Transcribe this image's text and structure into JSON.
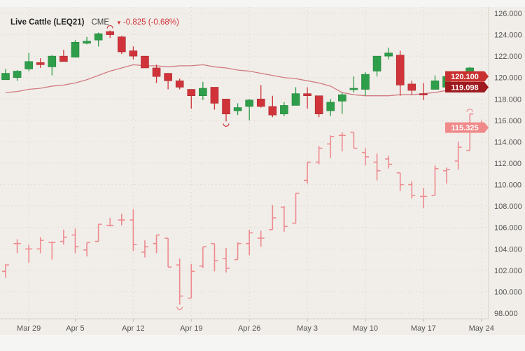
{
  "header": {
    "title": "Live Cattle (LEQ21)",
    "exchange": "CME",
    "change_icon": "triangle-down-icon",
    "change": "-0.825 (-0.68%)"
  },
  "colors": {
    "up": "#2e9e4a",
    "down": "#d0343a",
    "ohlc": "#ee8a8f",
    "ma": "#d07a80",
    "last_label": "#c8312f",
    "ma_label": "#9e1a1f",
    "ohlc_label": "#f08a8a",
    "background": "#f1eee9"
  },
  "chart_data": {
    "type": "candlestick",
    "title": "",
    "grid": true,
    "ylim": [
      98,
      126
    ],
    "y_ticks": [
      "126.000",
      "124.000",
      "122.000",
      "120.000",
      "118.000",
      "116.000",
      "114.000",
      "112.000",
      "110.000",
      "108.000",
      "106.000",
      "104.000",
      "102.000",
      "100.000",
      "98.000"
    ],
    "x_ticks": [
      {
        "label": "Mar 29",
        "index": 2
      },
      {
        "label": "Apr 5",
        "index": 6
      },
      {
        "label": "Apr 12",
        "index": 11
      },
      {
        "label": "Apr 19",
        "index": 16
      },
      {
        "label": "Apr 26",
        "index": 21
      },
      {
        "label": "May 3",
        "index": 26
      },
      {
        "label": "May 10",
        "index": 31
      },
      {
        "label": "May 17",
        "index": 36
      },
      {
        "label": "May 24",
        "index": 41
      }
    ],
    "candles": [
      [
        119.8,
        120.4,
        120.8,
        119.8
      ],
      [
        120.0,
        120.6,
        120.7,
        119.7
      ],
      [
        120.8,
        121.5,
        122.3,
        120.6
      ],
      [
        121.4,
        121.2,
        121.8,
        120.9
      ],
      [
        121.0,
        122.0,
        122.1,
        120.2
      ],
      [
        122.0,
        121.5,
        122.6,
        121.5
      ],
      [
        121.9,
        123.3,
        123.5,
        121.9
      ],
      [
        123.2,
        123.4,
        123.8,
        123.1
      ],
      [
        123.5,
        124.1,
        124.2,
        122.9
      ],
      [
        124.3,
        124.0,
        124.4,
        123.7
      ],
      [
        123.8,
        122.4,
        123.9,
        122.2
      ],
      [
        122.5,
        122.0,
        122.9,
        121.7
      ],
      [
        122.0,
        120.9,
        122.0,
        120.9
      ],
      [
        120.9,
        120.1,
        121.2,
        119.5
      ],
      [
        120.4,
        119.7,
        120.4,
        118.9
      ],
      [
        119.7,
        119.1,
        119.9,
        118.9
      ],
      [
        118.9,
        118.3,
        118.9,
        117.1
      ],
      [
        118.3,
        119.0,
        119.6,
        117.9
      ],
      [
        119.1,
        117.6,
        119.1,
        117.0
      ],
      [
        118.0,
        116.6,
        118.0,
        115.9
      ],
      [
        116.9,
        117.2,
        117.6,
        116.5
      ],
      [
        117.3,
        117.9,
        118.0,
        116.0
      ],
      [
        118.0,
        117.3,
        119.3,
        117.2
      ],
      [
        117.3,
        116.5,
        118.3,
        116.3
      ],
      [
        116.6,
        117.4,
        117.7,
        116.4
      ],
      [
        117.4,
        118.5,
        119.1,
        117.4
      ],
      [
        118.5,
        118.3,
        119.1,
        117.1
      ],
      [
        118.3,
        116.6,
        118.3,
        116.3
      ],
      [
        116.9,
        117.7,
        118.0,
        116.4
      ],
      [
        117.8,
        118.4,
        118.6,
        116.6
      ],
      [
        118.9,
        119.0,
        120.1,
        118.6
      ],
      [
        118.9,
        120.3,
        120.5,
        118.3
      ],
      [
        120.6,
        122.0,
        122.0,
        120.1
      ],
      [
        122.0,
        122.3,
        122.8,
        121.7
      ],
      [
        122.1,
        119.3,
        122.5,
        118.3
      ],
      [
        119.4,
        118.8,
        119.7,
        118.4
      ],
      [
        118.5,
        118.4,
        119.5,
        117.9
      ],
      [
        118.9,
        119.7,
        120.2,
        118.9
      ],
      [
        119.1,
        120.1,
        120.6,
        118.8
      ],
      [
        120.2,
        119.8,
        120.6,
        118.7
      ],
      [
        119.8,
        120.9,
        121.0,
        119.8
      ],
      [
        120.5,
        120.1,
        120.5,
        119.5
      ]
    ],
    "moving_average": [
      118.6,
      118.7,
      118.9,
      119.0,
      119.2,
      119.3,
      119.5,
      119.8,
      120.2,
      120.6,
      120.9,
      121.2,
      121.1,
      121.1,
      121.0,
      121.1,
      121.1,
      121.2,
      121.0,
      120.9,
      120.7,
      120.6,
      120.4,
      120.2,
      120.0,
      119.9,
      119.7,
      119.5,
      119.2,
      118.6,
      118.4,
      118.3,
      118.3,
      118.3,
      118.4,
      118.4,
      118.5,
      118.6,
      118.8,
      118.9,
      119.0,
      119.1
    ],
    "ohlc_bars": [
      [
        101.9,
        102.5,
        102.6,
        101.3
      ],
      [
        104.5,
        104.5,
        104.9,
        103.6
      ],
      [
        104.0,
        104.0,
        104.4,
        102.7
      ],
      [
        104.0,
        104.8,
        105.1,
        103.6
      ],
      [
        104.6,
        104.6,
        104.7,
        103.0
      ],
      [
        104.7,
        105.1,
        105.8,
        104.4
      ],
      [
        105.3,
        104.2,
        105.9,
        103.6
      ],
      [
        103.9,
        104.6,
        104.6,
        103.3
      ],
      [
        104.7,
        106.3,
        106.3,
        104.7
      ],
      [
        106.2,
        106.2,
        106.9,
        106.1
      ],
      [
        106.7,
        106.7,
        107.3,
        106.2
      ],
      [
        106.7,
        104.4,
        107.7,
        103.8
      ],
      [
        103.7,
        104.2,
        104.8,
        103.2
      ],
      [
        104.5,
        105.3,
        105.3,
        103.6
      ],
      [
        105.0,
        102.3,
        105.0,
        102.3
      ],
      [
        102.5,
        99.6,
        103.1,
        98.8
      ],
      [
        99.4,
        101.9,
        102.6,
        99.4
      ],
      [
        102.4,
        104.2,
        104.2,
        102.2
      ],
      [
        104.5,
        102.9,
        104.5,
        101.9
      ],
      [
        103.1,
        102.2,
        104.1,
        101.8
      ],
      [
        103.0,
        104.5,
        104.6,
        103.0
      ],
      [
        104.5,
        105.5,
        105.8,
        103.4
      ],
      [
        105.0,
        105.0,
        105.7,
        104.2
      ],
      [
        105.8,
        106.9,
        108.1,
        105.8
      ],
      [
        107.9,
        106.1,
        108.0,
        105.6
      ],
      [
        106.4,
        109.2,
        109.2,
        106.4
      ],
      [
        110.4,
        112.1,
        112.1,
        110.1
      ],
      [
        112.1,
        113.4,
        113.6,
        111.9
      ],
      [
        113.8,
        114.5,
        114.6,
        112.5
      ],
      [
        114.6,
        114.6,
        114.9,
        113.1
      ],
      [
        114.9,
        113.4,
        114.9,
        113.4
      ],
      [
        113.0,
        112.6,
        113.4,
        111.8
      ],
      [
        112.1,
        111.3,
        112.9,
        110.4
      ],
      [
        112.4,
        111.9,
        112.7,
        111.5
      ],
      [
        111.1,
        110.0,
        111.1,
        109.4
      ],
      [
        110.0,
        109.0,
        110.3,
        108.7
      ],
      [
        108.9,
        108.9,
        109.7,
        107.8
      ],
      [
        109.0,
        111.5,
        111.8,
        109.0
      ],
      [
        111.3,
        111.4,
        111.6,
        110.1
      ],
      [
        112.2,
        113.5,
        114.0,
        111.4
      ],
      [
        113.2,
        116.6,
        116.6,
        113.2
      ],
      [
        115.6,
        115.3,
        116.0,
        115.0
      ]
    ],
    "price_labels": [
      {
        "name": "last-price-label",
        "value": 120.1,
        "text": "120.100",
        "color_key": "last_label"
      },
      {
        "name": "moving-average-label",
        "value": 119.098,
        "text": "119.098",
        "color_key": "ma_label"
      },
      {
        "name": "comparison-price-label",
        "value": 115.325,
        "text": "115.325",
        "color_key": "ohlc_label"
      }
    ],
    "markers": {
      "candle_high_index": 9,
      "candle_low_index": 19,
      "bar_low_index": 15,
      "bar_high_index": 40
    }
  }
}
